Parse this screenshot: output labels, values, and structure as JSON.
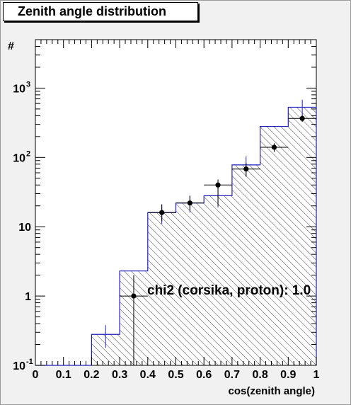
{
  "window": {
    "title": "Zenith angle distribution"
  },
  "chart_data": {
    "type": "bar",
    "title": "Zenith angle distribution",
    "xlabel": "cos(zenith angle)",
    "ylabel": "#",
    "xlim": [
      0,
      1
    ],
    "ylim": [
      0.1,
      5000
    ],
    "yscale": "log",
    "grid": false,
    "xticks": [
      "0",
      "0.1",
      "0.2",
      "0.3",
      "0.4",
      "0.5",
      "0.6",
      "0.7",
      "0.8",
      "0.9",
      "1"
    ],
    "yticks": [
      {
        "value": 0.1,
        "base": "10",
        "exp": "-1"
      },
      {
        "value": 1,
        "base": "1",
        "exp": ""
      },
      {
        "value": 10,
        "base": "10",
        "exp": ""
      },
      {
        "value": 100,
        "base": "10",
        "exp": "2"
      },
      {
        "value": 1000,
        "base": "10",
        "exp": "3"
      }
    ],
    "bin_edges": [
      0,
      0.1,
      0.2,
      0.3,
      0.4,
      0.5,
      0.6,
      0.7,
      0.8,
      0.9,
      1.0
    ],
    "series": [
      {
        "style": "hatched-histogram",
        "color": "#1f1fbf",
        "values": [
          0,
          0,
          0.28,
          2.3,
          16,
          22,
          28,
          78,
          280,
          530
        ],
        "errors": [
          0,
          0,
          0.1,
          0,
          5,
          6,
          9,
          25,
          0,
          150
        ]
      },
      {
        "style": "points-with-errors",
        "color": "#000000",
        "x": [
          0.35,
          0.45,
          0.55,
          0.65,
          0.75,
          0.85,
          0.95
        ],
        "values": [
          1.0,
          16,
          22,
          40,
          68,
          140,
          365
        ],
        "err_low": [
          0.9,
          4,
          5,
          20,
          15,
          20,
          40
        ],
        "err_high": [
          1.0,
          5,
          6,
          8,
          15,
          20,
          40
        ],
        "xerr": 0.05
      }
    ],
    "annotations": [
      "chi2 (corsika, proton): 1.0"
    ]
  }
}
